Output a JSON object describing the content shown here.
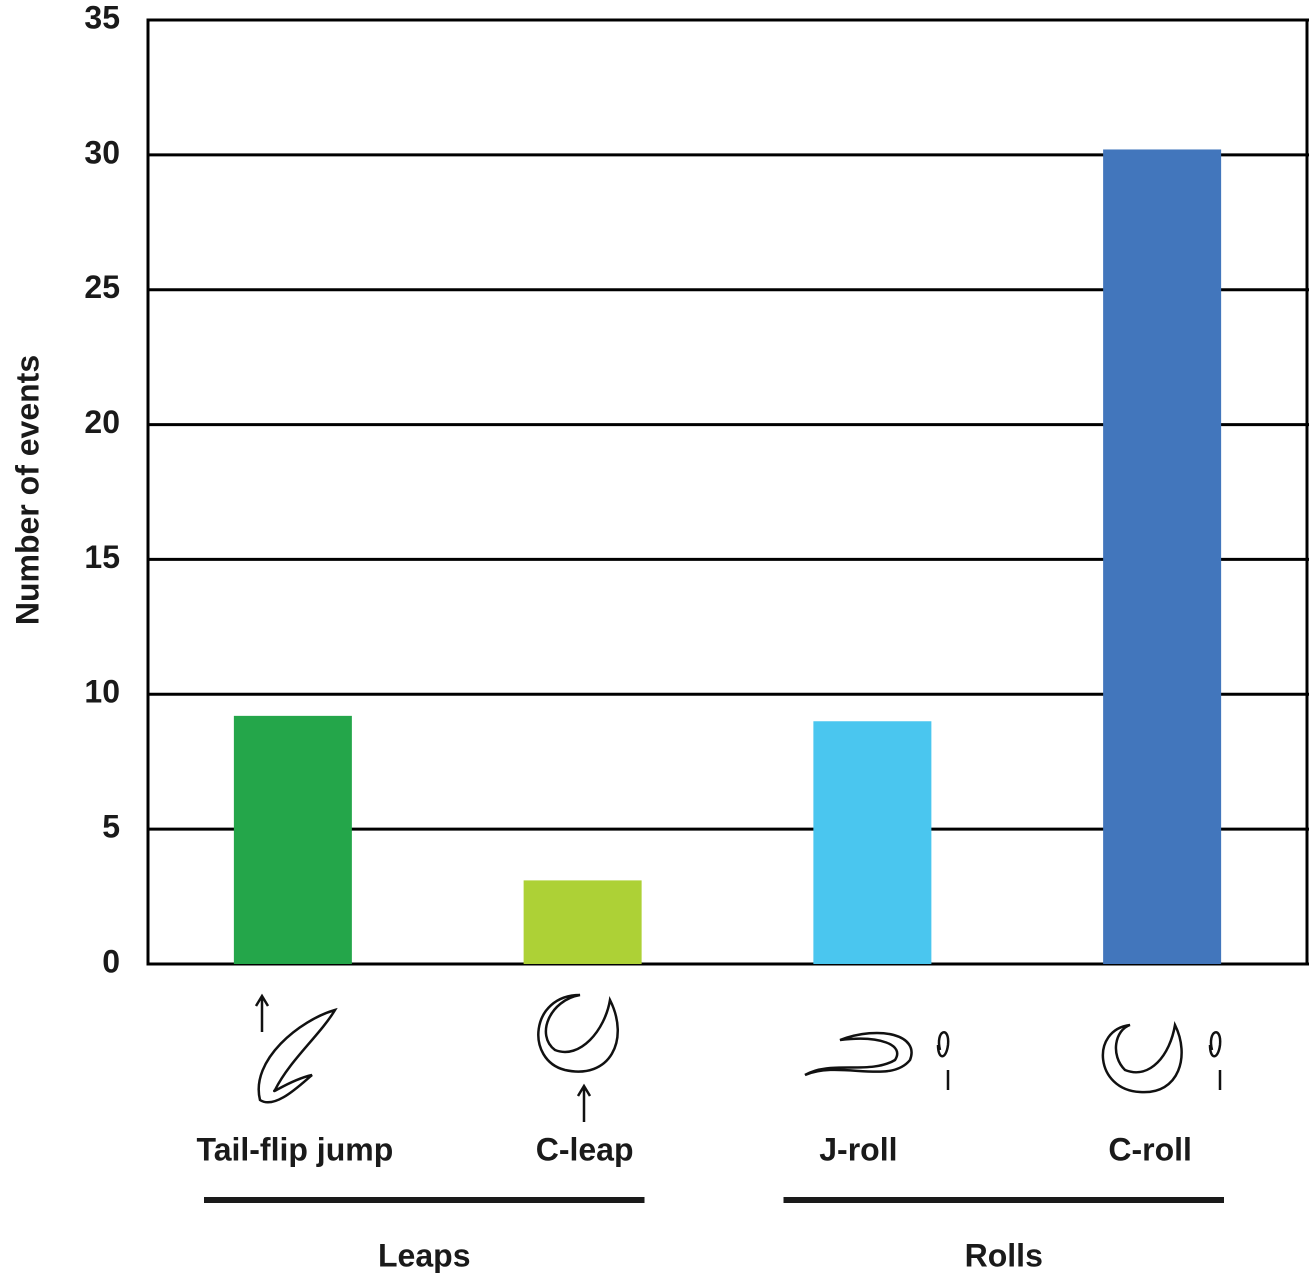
{
  "chart_data": {
    "type": "bar",
    "y_label": "Number of events",
    "categories": [
      "Tail-flip jump",
      "C-leap",
      "J-roll",
      "C-roll"
    ],
    "values": [
      9.2,
      3.1,
      9,
      30.2
    ],
    "colors": [
      "#24a64a",
      "#add136",
      "#4ac6ef",
      "#4276bc"
    ],
    "groups": [
      "Leaps",
      "Rolls"
    ],
    "ylim": [
      0,
      35
    ],
    "yticks": [
      0,
      5,
      10,
      15,
      20,
      25,
      30,
      35
    ],
    "grid": true
  }
}
